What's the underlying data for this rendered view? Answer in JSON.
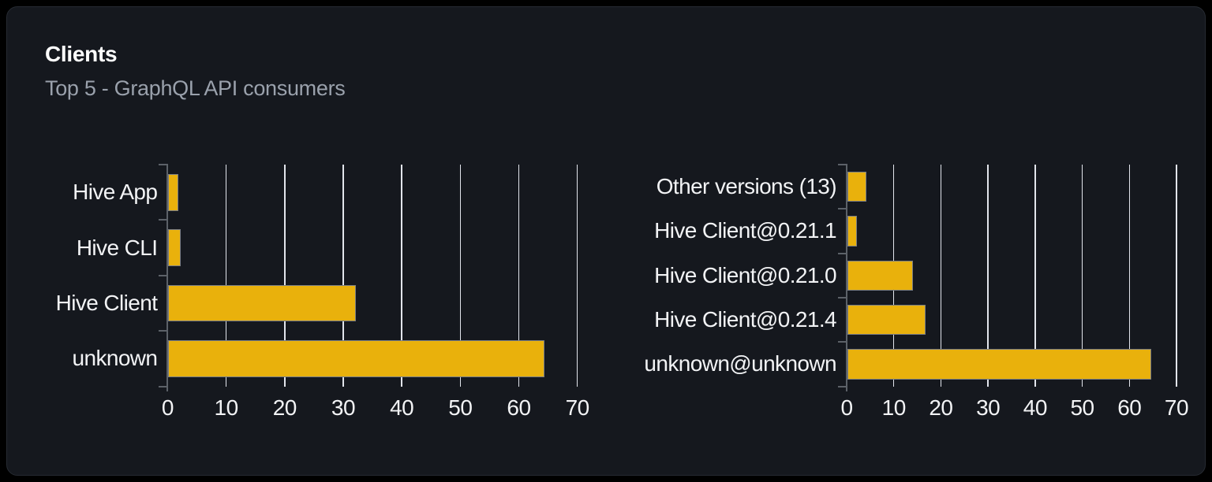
{
  "card": {
    "title": "Clients",
    "subtitle": "Top 5 - GraphQL API consumers"
  },
  "colors": {
    "page_bg": "#000000",
    "card_bg": "#15181e",
    "card_border": "#262a32",
    "bar_fill": "#e9b10c",
    "bar_border": "#7a7e85",
    "grid_line": "#e2e5ec",
    "axis_line": "#5c6168",
    "axis_text": "#f2f3f5",
    "title_text": "#ffffff",
    "subtitle_text": "#9aa1ac"
  },
  "chart_data": [
    {
      "type": "bar",
      "orientation": "horizontal",
      "categories": [
        "Hive App",
        "Hive CLI",
        "Hive Client",
        "unknown"
      ],
      "values": [
        1.7,
        2.1,
        32,
        64.3
      ],
      "xlabel": "",
      "ylabel": "",
      "xlim": [
        0,
        70
      ],
      "xticks": [
        0,
        10,
        20,
        30,
        40,
        50,
        60,
        70
      ],
      "grid": true,
      "legend": false
    },
    {
      "type": "bar",
      "orientation": "horizontal",
      "categories": [
        "Other versions (13)",
        "Hive Client@0.21.1",
        "Hive Client@0.21.0",
        "Hive Client@0.21.4",
        "unknown@unknown"
      ],
      "values": [
        4,
        2,
        13.9,
        16.5,
        64.4
      ],
      "xlabel": "",
      "ylabel": "",
      "xlim": [
        0,
        70
      ],
      "xticks": [
        0,
        10,
        20,
        30,
        40,
        50,
        60,
        70
      ],
      "grid": true,
      "legend": false
    }
  ]
}
